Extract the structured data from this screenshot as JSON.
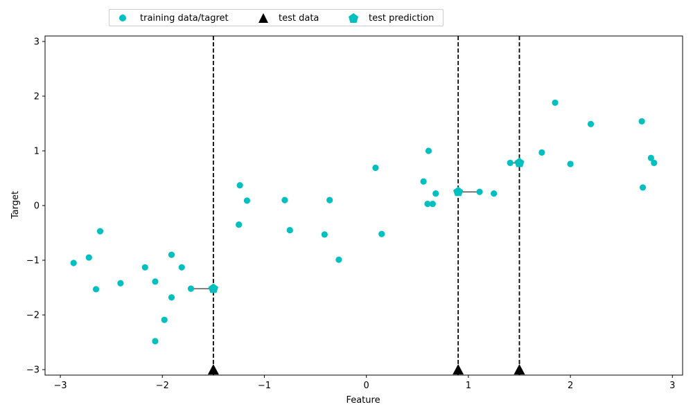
{
  "chart_data": {
    "type": "scatter",
    "title": "",
    "xlabel": "Feature",
    "ylabel": "Target",
    "xlim": [
      -3.15,
      3.1
    ],
    "ylim": [
      -3.1,
      3.1
    ],
    "x_ticks": [
      -3,
      -2,
      -1,
      0,
      1,
      2,
      3
    ],
    "y_ticks": [
      -3,
      -2,
      -1,
      0,
      1,
      2,
      3
    ],
    "grid": false,
    "legend_placement": "top, outside above axes",
    "colors": {
      "training": "#00bfbf",
      "test": "#000000",
      "prediction": "#00bfbf"
    },
    "series": [
      {
        "name": "training data/tagret",
        "marker": "circle",
        "x": [
          -2.87,
          -2.72,
          -2.65,
          -2.61,
          -2.41,
          -2.17,
          -2.07,
          -2.07,
          -1.98,
          -1.91,
          -1.91,
          -1.81,
          -1.72,
          -1.25,
          -1.24,
          -1.17,
          -0.8,
          -0.75,
          -0.41,
          -0.36,
          -0.27,
          0.09,
          0.15,
          0.56,
          0.6,
          0.61,
          0.65,
          0.68,
          1.11,
          1.25,
          1.41,
          1.72,
          1.85,
          2.0,
          2.2,
          2.7,
          2.71,
          2.79,
          2.82
        ],
        "y": [
          -1.05,
          -0.95,
          -1.53,
          -0.47,
          -1.42,
          -1.13,
          -1.39,
          -2.48,
          -2.09,
          -1.68,
          -0.9,
          -1.13,
          -1.52,
          -0.35,
          0.37,
          0.09,
          0.1,
          -0.45,
          -0.53,
          0.1,
          -0.99,
          0.69,
          -0.52,
          0.44,
          0.03,
          1.0,
          0.03,
          0.22,
          0.25,
          0.22,
          0.78,
          0.97,
          1.88,
          0.76,
          1.49,
          1.54,
          0.33,
          0.87,
          0.78
        ]
      },
      {
        "name": "test data",
        "marker": "triangle",
        "x": [
          -1.5,
          0.9,
          1.5
        ],
        "y": [
          -3,
          -3,
          -3
        ]
      },
      {
        "name": "test prediction",
        "marker": "pentagon",
        "x": [
          -1.5,
          0.9,
          1.5
        ],
        "y": [
          -1.52,
          0.25,
          0.78
        ]
      }
    ],
    "nearest_neighbor_links": [
      {
        "from": [
          -1.5,
          -1.52
        ],
        "to": [
          -1.72,
          -1.52
        ]
      },
      {
        "from": [
          0.9,
          0.25
        ],
        "to": [
          1.11,
          0.25
        ]
      },
      {
        "from": [
          1.5,
          0.78
        ],
        "to": [
          1.41,
          0.78
        ]
      }
    ]
  }
}
